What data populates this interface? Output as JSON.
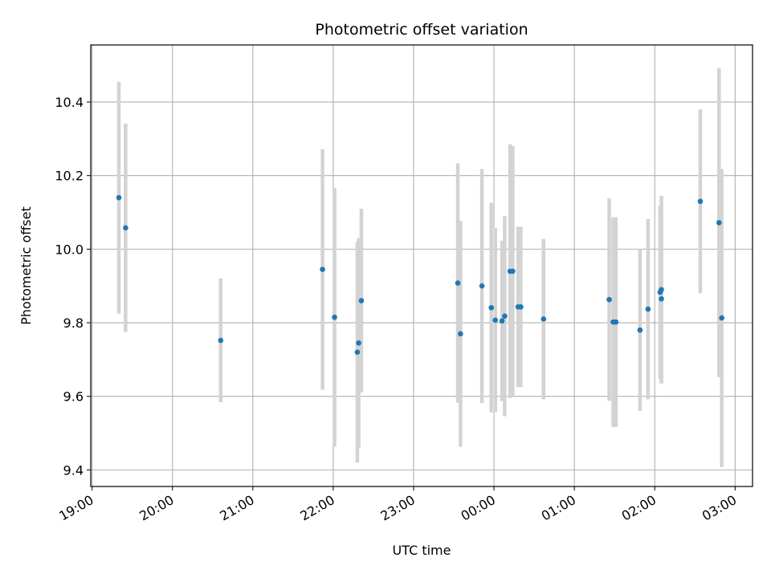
{
  "chart_data": {
    "type": "scatter",
    "title": "Photometric offset variation",
    "xlabel": "UTC time",
    "ylabel": "Photometric offset",
    "xlim": [
      "2000-01-01T18:59",
      "2000-01-02T03:13"
    ],
    "ylim": [
      9.355,
      10.555
    ],
    "grid": true,
    "x_tick_labels": [
      "19:00",
      "20:00",
      "21:00",
      "22:00",
      "23:00",
      "00:00",
      "01:00",
      "02:00",
      "03:00"
    ],
    "x_ticks": [
      "2000-01-01T19:00",
      "2000-01-01T20:00",
      "2000-01-01T21:00",
      "2000-01-01T22:00",
      "2000-01-01T23:00",
      "2000-01-02T00:00",
      "2000-01-02T01:00",
      "2000-01-02T02:00",
      "2000-01-02T03:00"
    ],
    "y_tick_labels": [
      "9.4",
      "9.6",
      "9.8",
      "10.0",
      "10.2",
      "10.4"
    ],
    "y_ticks": [
      9.4,
      9.6,
      9.8,
      10.0,
      10.2,
      10.4
    ],
    "point_color": "#1f77b4",
    "errorbar_color": "#d3d3d3",
    "points": [
      {
        "x": "2000-01-01T19:20",
        "y": 10.14,
        "err": 0.315
      },
      {
        "x": "2000-01-01T19:25",
        "y": 10.058,
        "err": 0.283
      },
      {
        "x": "2000-01-01T20:36",
        "y": 9.752,
        "err": 0.168
      },
      {
        "x": "2000-01-01T21:52",
        "y": 9.945,
        "err": 0.327
      },
      {
        "x": "2000-01-01T22:01",
        "y": 9.815,
        "err": 0.352
      },
      {
        "x": "2000-01-01T22:18",
        "y": 9.72,
        "err": 0.3
      },
      {
        "x": "2000-01-01T22:19",
        "y": 9.745,
        "err": 0.285
      },
      {
        "x": "2000-01-01T22:21",
        "y": 9.86,
        "err": 0.25
      },
      {
        "x": "2000-01-01T23:33",
        "y": 9.908,
        "err": 0.325
      },
      {
        "x": "2000-01-01T23:35",
        "y": 9.77,
        "err": 0.307
      },
      {
        "x": "2000-01-01T23:51",
        "y": 9.9,
        "err": 0.318
      },
      {
        "x": "2000-01-01T23:58",
        "y": 9.841,
        "err": 0.285
      },
      {
        "x": "2000-01-02T00:01",
        "y": 9.807,
        "err": 0.25
      },
      {
        "x": "2000-01-02T00:06",
        "y": 9.805,
        "err": 0.218
      },
      {
        "x": "2000-01-02T00:08",
        "y": 9.818,
        "err": 0.272
      },
      {
        "x": "2000-01-02T00:12",
        "y": 9.94,
        "err": 0.345
      },
      {
        "x": "2000-01-02T00:14",
        "y": 9.94,
        "err": 0.34
      },
      {
        "x": "2000-01-02T00:18",
        "y": 9.843,
        "err": 0.218
      },
      {
        "x": "2000-01-02T00:20",
        "y": 9.843,
        "err": 0.218
      },
      {
        "x": "2000-01-02T00:37",
        "y": 9.81,
        "err": 0.218
      },
      {
        "x": "2000-01-02T01:26",
        "y": 9.863,
        "err": 0.275
      },
      {
        "x": "2000-01-02T01:29",
        "y": 9.802,
        "err": 0.285
      },
      {
        "x": "2000-01-02T01:31",
        "y": 9.802,
        "err": 0.285
      },
      {
        "x": "2000-01-02T01:49",
        "y": 9.78,
        "err": 0.22
      },
      {
        "x": "2000-01-02T01:55",
        "y": 9.837,
        "err": 0.245
      },
      {
        "x": "2000-01-02T02:04",
        "y": 9.883,
        "err": 0.235
      },
      {
        "x": "2000-01-02T02:05",
        "y": 9.89,
        "err": 0.255
      },
      {
        "x": "2000-01-02T02:05",
        "y": 9.865,
        "err": 0.228
      },
      {
        "x": "2000-01-02T02:34",
        "y": 10.13,
        "err": 0.25
      },
      {
        "x": "2000-01-02T02:48",
        "y": 10.072,
        "err": 0.42
      },
      {
        "x": "2000-01-02T02:50",
        "y": 9.813,
        "err": 0.405
      }
    ]
  }
}
